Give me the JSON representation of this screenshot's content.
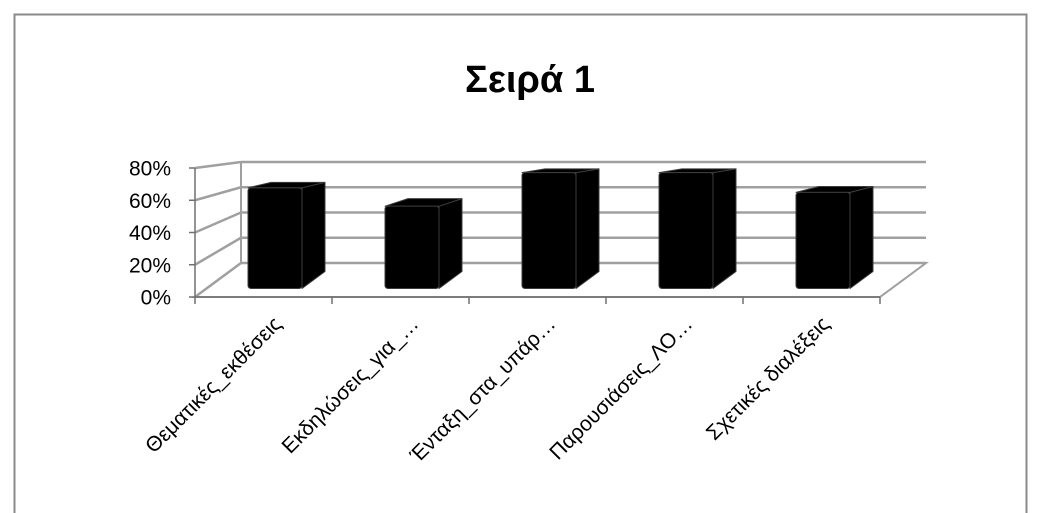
{
  "chart_data": {
    "type": "bar",
    "style": "3d-column",
    "title": "Σειρά 1",
    "categories": [
      "Θεματικές_εκθέσεις",
      "Εκδηλώσεις_για_…",
      "Ένταξη_στα_υπάρ…",
      "Παρουσιάσεις_ΛΟ…",
      "Σχετικές διαλέξεις"
    ],
    "series": [
      {
        "values": [
          66,
          54,
          76,
          76,
          63
        ]
      }
    ],
    "y_ticks": [
      0,
      20,
      40,
      60,
      80
    ],
    "y_tick_labels": [
      "0%",
      "20%",
      "40%",
      "60%",
      "80%"
    ],
    "ylim": [
      0,
      80
    ],
    "grid": true,
    "legend": "none"
  },
  "colors": {
    "bar": "#000000",
    "bar_edge": "#3c3c3c",
    "gridline": "#a0a0a0",
    "axis": "#707070",
    "floor": "#ffffff",
    "border": "#8a8a8a",
    "text": "#000000"
  }
}
